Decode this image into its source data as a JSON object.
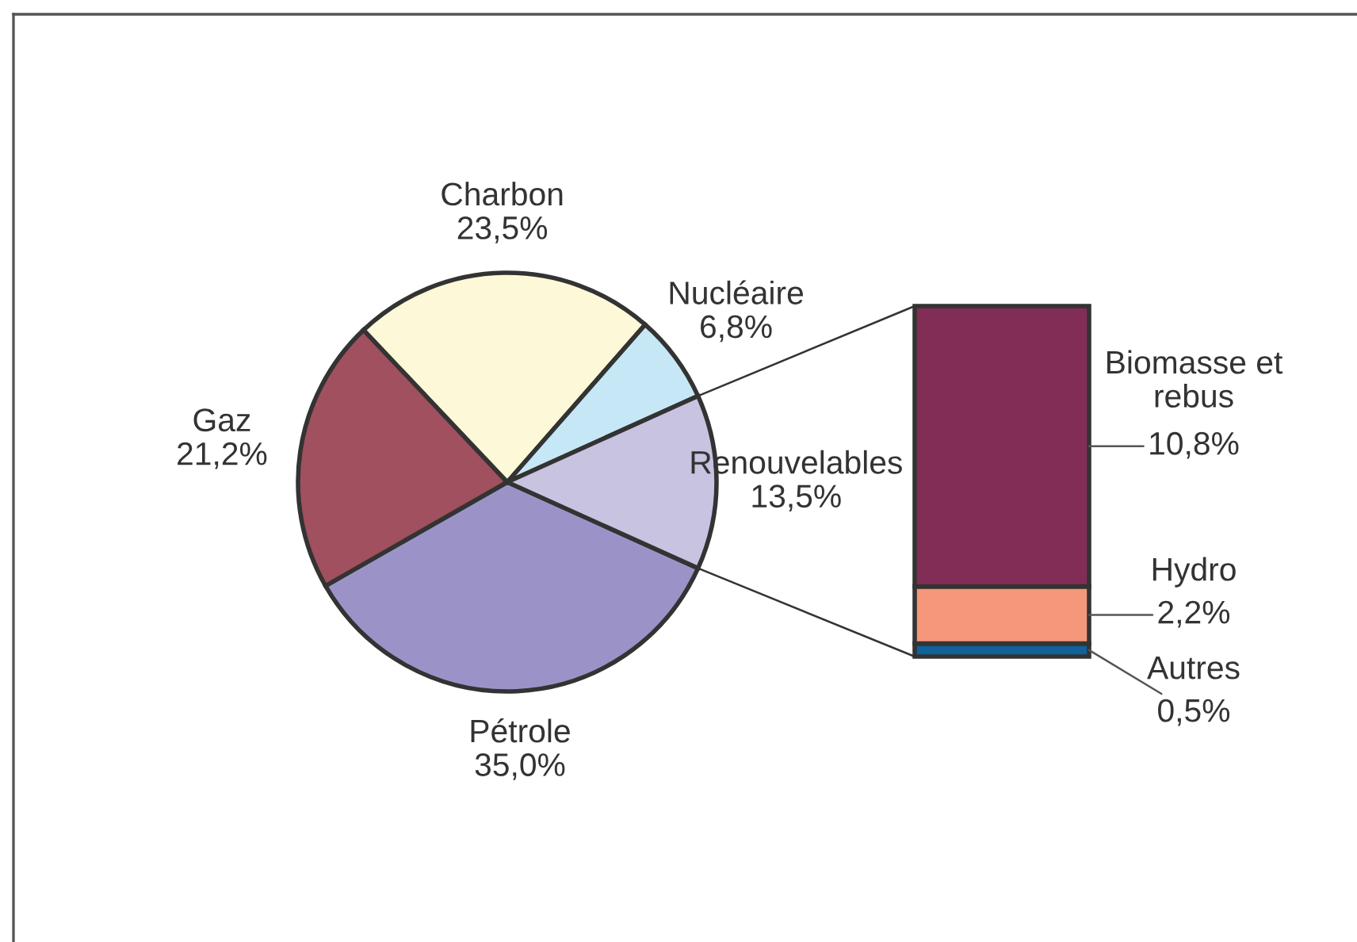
{
  "chart_data": [
    {
      "type": "pie",
      "categories": [
        "Pétrole",
        "Gaz",
        "Charbon",
        "Nucléaire",
        "Renouvelables"
      ],
      "values": [
        35.0,
        21.2,
        23.5,
        6.8,
        13.5
      ],
      "colors": [
        "#9b93c8",
        "#a0505e",
        "#fdf8d8",
        "#c6e7f6",
        "#c7c3e1"
      ],
      "value_labels": [
        "35,0%",
        "21,2%",
        "23,5%",
        "6,8%",
        "13,5%"
      ]
    },
    {
      "type": "bar",
      "stacked": true,
      "categories": [
        null
      ],
      "series": [
        {
          "name": "Autres",
          "color": "#0f629a",
          "values": [
            0.5
          ],
          "value_labels": [
            "0,5%"
          ]
        },
        {
          "name": "Hydro",
          "color": "#f4977a",
          "values": [
            2.2
          ],
          "value_labels": [
            "2,2%"
          ]
        },
        {
          "name": "Biomasse et rebus",
          "color": "#822d55",
          "values": [
            10.8
          ],
          "value_labels": [
            "10,8%"
          ]
        }
      ],
      "tick_labels": false
    }
  ]
}
